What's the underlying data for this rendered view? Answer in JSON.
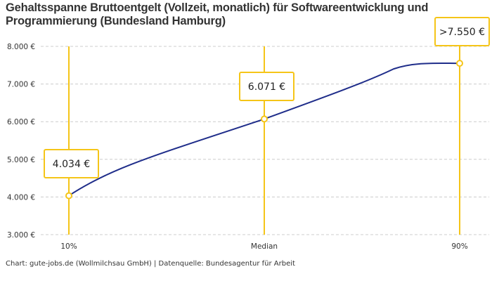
{
  "chart_data": {
    "type": "line",
    "title": "Gehaltsspanne Bruttoentgelt (Vollzeit, monatlich) für Softwareentwicklung und Programmierung (Bundesland Hamburg)",
    "categories": [
      "10%",
      "Median",
      "90%"
    ],
    "values": [
      4034,
      6071,
      7550
    ],
    "data_labels": [
      "4.034 €",
      "6.071 €",
      ">7.550 €"
    ],
    "ylim": [
      3000,
      8000
    ],
    "y_ticks": [
      3000,
      4000,
      5000,
      6000,
      7000,
      8000
    ],
    "y_tick_labels": [
      "3.000 €",
      "4.000 €",
      "5.000 €",
      "6.000 €",
      "7.000 €",
      "8.000 €"
    ],
    "grid": "horizontal dashed",
    "colors": {
      "line": "#1f2d8a",
      "marker": "#f5c518",
      "grid": "#cccccc"
    }
  },
  "source": "Chart: gute-jobs.de (Wollmilchsau GmbH) | Datenquelle: Bundesagentur für Arbeit"
}
